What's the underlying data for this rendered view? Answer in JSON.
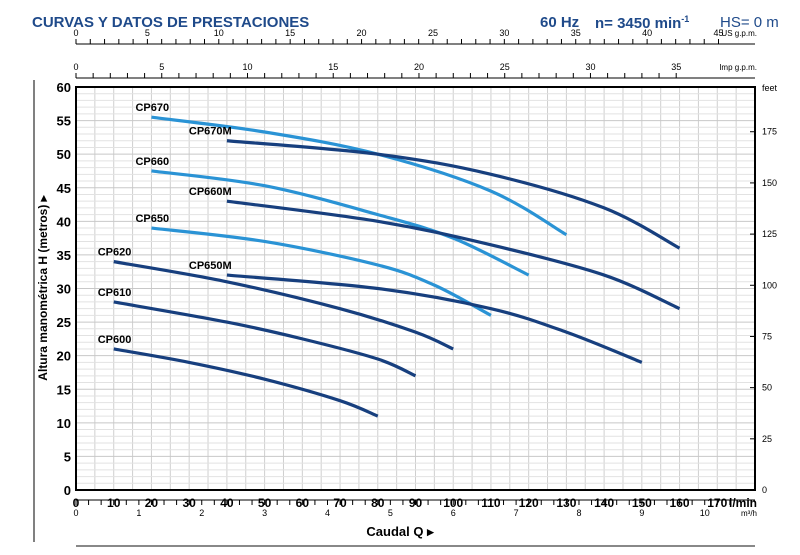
{
  "header": {
    "title": "CURVAS Y DATOS DE PRESTACIONES",
    "freq": "60 Hz",
    "speed": "n= 3450 min",
    "speed_sup": "-1",
    "hs": "HS= 0 m"
  },
  "chart_data": {
    "type": "line",
    "xlabel": "Caudal Q",
    "ylabel": "Altura manométrica H (metros)",
    "x_unit": "l/min",
    "xlim": [
      0,
      180
    ],
    "ylim": [
      0,
      60
    ],
    "xticks": [
      0,
      10,
      20,
      30,
      40,
      50,
      60,
      70,
      80,
      90,
      100,
      110,
      120,
      130,
      140,
      150,
      160,
      170
    ],
    "yticks": [
      0,
      5,
      10,
      15,
      20,
      25,
      30,
      35,
      40,
      45,
      50,
      55,
      60
    ],
    "grid": true,
    "secondary_axes": {
      "us_gpm": {
        "label": "US g.p.m.",
        "ticks": [
          0,
          5,
          10,
          15,
          20,
          25,
          30,
          35,
          40,
          45
        ]
      },
      "imp_gpm": {
        "label": "Imp g.p.m.",
        "ticks": [
          0,
          5,
          10,
          15,
          20,
          25,
          30,
          35
        ]
      },
      "m3h": {
        "label": "m³/h",
        "ticks": [
          0,
          1,
          2,
          3,
          4,
          5,
          6,
          7,
          8,
          9,
          10
        ]
      },
      "feet": {
        "label": "feet",
        "ticks": [
          0,
          25,
          50,
          75,
          100,
          125,
          150,
          175
        ]
      }
    },
    "colors": {
      "light": "#2a93d5",
      "dark": "#173f7e"
    },
    "series": [
      {
        "name": "CP670",
        "style": "light",
        "x": [
          20,
          50,
          80,
          110,
          130
        ],
        "y": [
          55.5,
          53.3,
          50,
          44.5,
          38
        ]
      },
      {
        "name": "CP670M",
        "style": "dark",
        "x": [
          40,
          80,
          110,
          140,
          160
        ],
        "y": [
          52,
          50,
          47,
          42,
          36
        ]
      },
      {
        "name": "CP660",
        "style": "light",
        "x": [
          20,
          50,
          80,
          100,
          120
        ],
        "y": [
          47.5,
          45.3,
          41,
          37.5,
          32
        ]
      },
      {
        "name": "CP660M",
        "style": "dark",
        "x": [
          40,
          80,
          110,
          140,
          160
        ],
        "y": [
          43,
          40,
          36.5,
          32,
          27
        ]
      },
      {
        "name": "CP650",
        "style": "light",
        "x": [
          20,
          50,
          80,
          95,
          110
        ],
        "y": [
          39,
          37,
          33.5,
          30.5,
          26
        ]
      },
      {
        "name": "CP650M",
        "style": "dark",
        "x": [
          40,
          80,
          110,
          130,
          150
        ],
        "y": [
          32,
          30,
          27,
          23.5,
          19
        ]
      },
      {
        "name": "CP620",
        "style": "dark",
        "x": [
          10,
          40,
          70,
          90,
          100
        ],
        "y": [
          34,
          31,
          27,
          23.5,
          21
        ]
      },
      {
        "name": "CP610",
        "style": "dark",
        "x": [
          10,
          40,
          60,
          80,
          90
        ],
        "y": [
          28,
          25,
          22.5,
          19.5,
          17
        ]
      },
      {
        "name": "CP600",
        "style": "dark",
        "x": [
          10,
          30,
          50,
          70,
          80
        ],
        "y": [
          21,
          19,
          16.5,
          13.3,
          11
        ]
      }
    ]
  }
}
